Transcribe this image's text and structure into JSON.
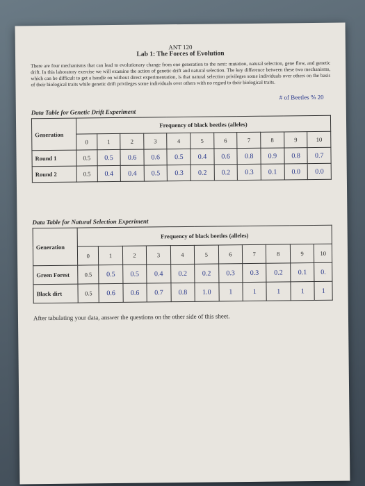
{
  "header": {
    "course": "ANT 120",
    "title": "Lab 1: The Forces of Evolution"
  },
  "intro": "There are four mechanisms that can lead to evolutionary change from one generation to the next: mutation, natural selection, gene flow, and genetic drift. In this laboratory exercise we will examine the action of genetic drift and natural selection. The key difference between these two mechanisms, which can be difficult to get a handle on without direct experimentation, is that natural selection privileges some individuals over others on the basis of their biological traits while genetic drift privileges some individuals over others with no regard to their biological traits.",
  "handnote": "# of Beetles % 20",
  "table1": {
    "title": "Data Table for Genetic Drift Experiment",
    "freq_header": "Frequency of black beetles (alleles)",
    "gen_label": "Generation",
    "columns": [
      "0",
      "1",
      "2",
      "3",
      "4",
      "5",
      "6",
      "7",
      "8",
      "9",
      "10"
    ],
    "rows": [
      {
        "label": "Round 1",
        "cells": [
          "0.5",
          "0.5",
          "0.6",
          "0.6",
          "0.5",
          "0.4",
          "0.6",
          "0.8",
          "0.9",
          "0.8",
          "0.7"
        ]
      },
      {
        "label": "Round 2",
        "cells": [
          "0.5",
          "0.4",
          "0.4",
          "0.5",
          "0.3",
          "0.2",
          "0.2",
          "0.3",
          "0.1",
          "0.0",
          "0.0"
        ]
      }
    ]
  },
  "table2": {
    "title": "Data Table for Natural Selection Experiment",
    "freq_header": "Frequency of black beetles (alleles)",
    "gen_label": "Generation",
    "columns": [
      "0",
      "1",
      "2",
      "3",
      "4",
      "5",
      "6",
      "7",
      "8",
      "9",
      "10"
    ],
    "rows": [
      {
        "label": "Green Forest",
        "cells": [
          "0.5",
          "0.5",
          "0.5",
          "0.4",
          "0.2",
          "0.2",
          "0.3",
          "0.3",
          "0.2",
          "0.1",
          "0."
        ]
      },
      {
        "label": "Black dirt",
        "cells": [
          "0.5",
          "0.6",
          "0.6",
          "0.7",
          "0.8",
          "1.0",
          "1",
          "1",
          "1",
          "1",
          "1"
        ]
      }
    ]
  },
  "footer": "After tabulating your data, answer the questions on the other side of this sheet."
}
